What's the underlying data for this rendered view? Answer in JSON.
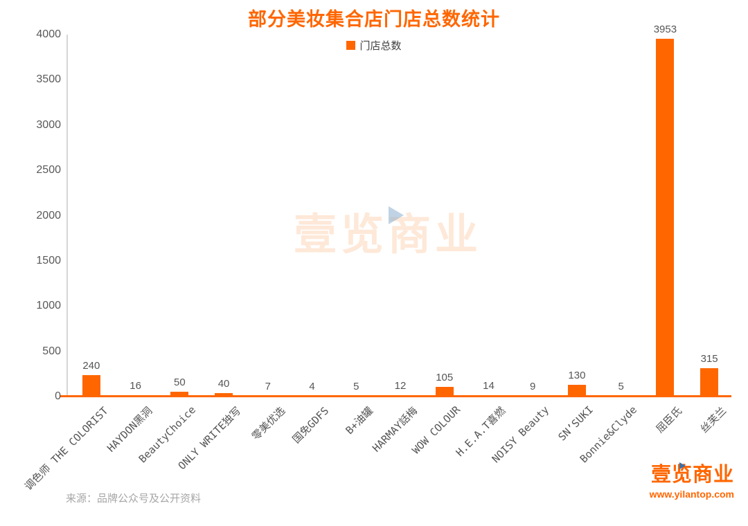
{
  "title": "部分美妆集合店门店总数统计",
  "legend": {
    "label": "门店总数"
  },
  "watermark": {
    "text": "壹览商业"
  },
  "footer": {
    "source": "来源：品牌公众号及公开资料",
    "logo_text": "壹览商业",
    "logo_url": "www.yilantop.com"
  },
  "colors": {
    "accent": "#FF6600",
    "bar": "#FF6600",
    "axis_text": "#595959",
    "label_text": "#555555",
    "source_text": "#A6A6A6",
    "axis_line": "#D6D6D6",
    "watermark_orange": "rgba(250,140,60,0.20)",
    "watermark_blue": "#8CAFCD"
  },
  "chart_data": {
    "type": "bar",
    "title": "部分美妆集合店门店总数统计",
    "legend_entries": [
      "门店总数"
    ],
    "legend_position": "top-center",
    "grid": false,
    "xlabel": "",
    "ylabel": "",
    "ylim": [
      0,
      4000
    ],
    "ytick_step": 500,
    "yticks": [
      0,
      500,
      1000,
      1500,
      2000,
      2500,
      3000,
      3500,
      4000
    ],
    "categories": [
      "调色师 THE COLORIST",
      "HAYDON黑洞",
      "BeautyChoice",
      "ONLY WRITE独写",
      "零美优选",
      "国免GDFS",
      "B+油罐",
      "HARMAY話梅",
      "WOW COLOUR",
      "H.E.A.T喜燃",
      "NOISY Beauty",
      "SN’SUKI",
      "Bonnie&Clyde",
      "屈臣氏",
      "丝芙兰"
    ],
    "values": [
      240,
      16,
      50,
      40,
      7,
      4,
      5,
      12,
      105,
      14,
      9,
      130,
      5,
      3953,
      315
    ],
    "bar_color": "#FF6600"
  }
}
